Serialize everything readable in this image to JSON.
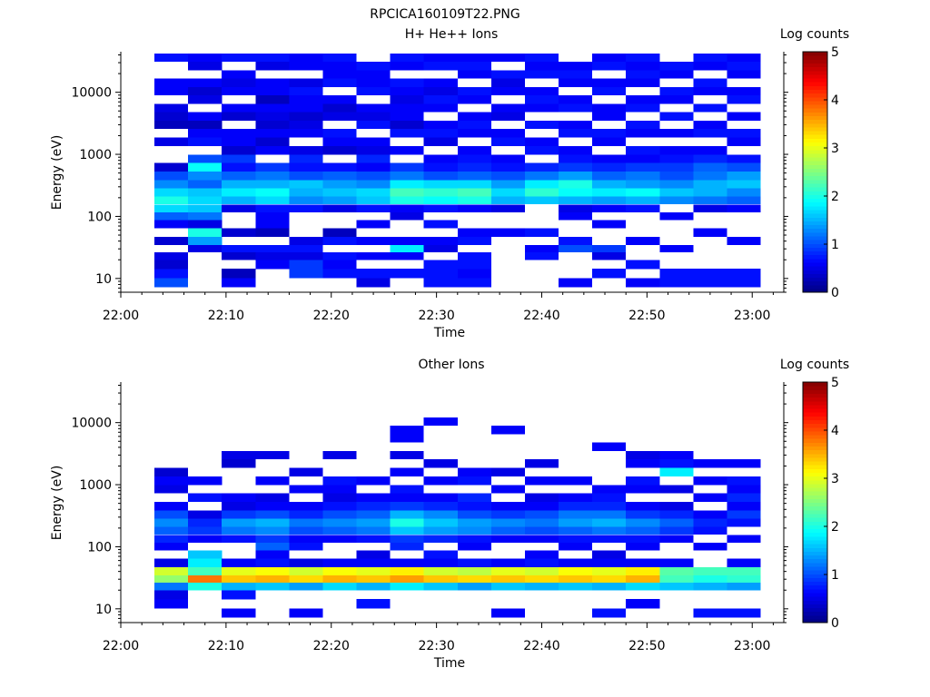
{
  "figure": {
    "filename": "RPCICA160109T22.PNG"
  },
  "colors": {
    "colormap": [
      "#000080",
      "#0000ff",
      "#0080ff",
      "#00ffff",
      "#80ff80",
      "#ffff00",
      "#ff8000",
      "#ff0000",
      "#800000"
    ],
    "axis": "#000000",
    "background": "#ffffff"
  },
  "chart_data": [
    {
      "type": "heatmap",
      "title": "H+ He++ Ions",
      "xlabel": "Time",
      "ylabel": "Energy (eV)",
      "xlim": [
        "22:00",
        "23:03"
      ],
      "ylim": [
        6,
        45000
      ],
      "yscale": "log",
      "x_ticks": [
        "22:00",
        "22:10",
        "22:20",
        "22:30",
        "22:40",
        "22:50",
        "23:00"
      ],
      "y_ticks": [
        "10",
        "100",
        "1000",
        "10000"
      ],
      "colorbar": {
        "label": "Log counts",
        "range": [
          0,
          5
        ],
        "ticks": [
          "0",
          "1",
          "2",
          "3",
          "4",
          "5"
        ]
      },
      "time_bins_start_min": [
        3.2,
        6.4,
        9.6,
        12.8,
        16.0,
        19.2,
        22.4,
        25.6,
        28.8,
        32.0,
        35.2,
        38.4,
        41.6,
        44.8,
        48.0,
        51.2,
        54.4,
        57.6
      ],
      "time_bin_width_min": 3.2,
      "energy_bins_eV": [
        8.5,
        12,
        17,
        23,
        30,
        40,
        55,
        75,
        100,
        135,
        180,
        240,
        330,
        450,
        620,
        850,
        1150,
        1600,
        2200,
        3000,
        4100,
        5600,
        7600,
        10400,
        14200,
        19400,
        26500,
        36000
      ],
      "values_log_counts": [
        [
          1.0,
          0.7,
          0.4,
          0.5,
          0.0,
          0.4,
          0.0,
          0.6,
          1.1,
          1.7,
          2.0,
          1.7,
          1.3,
          1.0,
          0.4,
          0.0,
          0.0,
          0.5,
          0.0,
          0.3,
          0.4,
          0.5,
          0.0,
          0.6,
          0.6,
          0.0,
          0.0,
          0.7
        ],
        [
          0.0,
          0.0,
          0.0,
          0.0,
          0.5,
          1.4,
          2.0,
          0.5,
          1.2,
          1.6,
          1.7,
          1.6,
          1.1,
          1.3,
          1.9,
          1.0,
          0.0,
          0.7,
          0.6,
          0.3,
          0.6,
          0.0,
          0.5,
          0.4,
          0.6,
          0.0,
          0.5,
          0.6
        ],
        [
          0.6,
          0.3,
          0.0,
          0.4,
          0.7,
          0.0,
          0.4,
          0.0,
          0.0,
          0.5,
          1.5,
          1.8,
          1.5,
          1.1,
          0.7,
          0.9,
          0.4,
          0.6,
          0.6,
          0.0,
          0.4,
          0.6,
          0.0,
          0.6,
          0.5,
          0.6,
          0.0,
          0.7
        ],
        [
          0.0,
          0.0,
          0.6,
          0.5,
          0.7,
          0.0,
          0.3,
          0.6,
          0.6,
          0.7,
          1.7,
          1.9,
          1.5,
          1.2,
          0.9,
          0.0,
          0.6,
          0.4,
          0.6,
          0.4,
          0.5,
          0.6,
          0.3,
          0.6,
          0.6,
          0.0,
          0.5,
          0.7
        ],
        [
          0.0,
          0.9,
          0.9,
          0.5,
          0.7,
          0.5,
          0.0,
          0.0,
          0.0,
          0.7,
          1.3,
          1.5,
          1.6,
          1.0,
          0.7,
          0.8,
          0.5,
          0.0,
          0.6,
          0.5,
          0.4,
          0.6,
          0.6,
          0.7,
          0.5,
          0.0,
          0.6,
          0.6
        ],
        [
          0.0,
          0.7,
          0.6,
          0.7,
          0.0,
          0.7,
          0.3,
          0.0,
          0.0,
          0.5,
          1.4,
          1.6,
          1.4,
          1.1,
          0.7,
          0.0,
          0.4,
          0.6,
          0.7,
          0.0,
          0.5,
          0.4,
          0.6,
          0.0,
          0.7,
          0.6,
          0.6,
          0.7
        ],
        [
          0.5,
          0.7,
          0.0,
          0.6,
          0.0,
          0.6,
          0.0,
          0.6,
          0.0,
          0.7,
          1.6,
          1.7,
          1.3,
          1.0,
          0.6,
          0.8,
          0.5,
          0.6,
          0.0,
          0.7,
          0.5,
          0.6,
          0.0,
          0.7,
          0.6,
          0.6,
          0.7,
          0.0
        ],
        [
          0.0,
          0.7,
          0.0,
          0.6,
          1.8,
          0.6,
          0.0,
          0.0,
          0.5,
          0.6,
          2.0,
          2.2,
          1.8,
          1.2,
          0.9,
          0.0,
          0.6,
          0.0,
          0.7,
          0.4,
          0.6,
          0.6,
          0.5,
          0.6,
          0.7,
          0.0,
          0.6,
          0.7
        ],
        [
          0.7,
          0.7,
          0.7,
          0.0,
          0.5,
          0.6,
          0.0,
          0.7,
          0.0,
          0.7,
          1.9,
          2.1,
          1.7,
          1.0,
          0.7,
          0.6,
          0.0,
          0.5,
          0.7,
          0.6,
          0.0,
          0.6,
          0.7,
          0.5,
          0.6,
          0.0,
          0.7,
          0.6
        ],
        [
          0.7,
          0.6,
          0.7,
          0.7,
          0.0,
          0.7,
          0.6,
          0.0,
          0.0,
          0.6,
          2.0,
          2.2,
          1.7,
          1.1,
          0.8,
          0.7,
          0.6,
          0.0,
          0.6,
          0.7,
          0.6,
          0.0,
          0.6,
          0.7,
          0.0,
          0.6,
          0.7,
          0.6
        ],
        [
          0.0,
          0.0,
          0.0,
          0.0,
          0.0,
          0.0,
          0.6,
          0.0,
          0.0,
          0.5,
          1.5,
          1.7,
          1.4,
          1.0,
          0.7,
          0.6,
          0.0,
          0.7,
          0.6,
          0.0,
          0.5,
          0.6,
          0.0,
          0.6,
          0.5,
          0.7,
          0.0,
          0.6
        ],
        [
          0.0,
          0.0,
          0.0,
          0.7,
          0.6,
          0.0,
          0.7,
          0.0,
          0.0,
          0.0,
          1.6,
          2.1,
          1.8,
          1.2,
          0.8,
          0.0,
          0.7,
          0.6,
          0.0,
          0.7,
          0.0,
          0.6,
          0.7,
          0.6,
          0.0,
          0.7,
          0.6,
          0.7
        ],
        [
          0.6,
          0.0,
          0.0,
          0.0,
          1.0,
          0.7,
          0.0,
          0.0,
          0.6,
          0.5,
          1.5,
          1.9,
          2.0,
          1.4,
          0.9,
          0.7,
          0.6,
          0.0,
          0.7,
          0.6,
          0.0,
          0.7,
          0.6,
          0.0,
          0.6,
          0.7,
          0.6,
          0.0
        ],
        [
          0.0,
          0.7,
          0.0,
          0.5,
          0.9,
          0.0,
          0.0,
          0.6,
          0.0,
          0.6,
          1.4,
          1.8,
          1.5,
          1.1,
          0.8,
          0.6,
          0.0,
          0.6,
          0.7,
          0.0,
          0.6,
          0.6,
          0.0,
          0.7,
          0.6,
          0.0,
          0.7,
          0.6
        ],
        [
          0.6,
          0.0,
          0.7,
          0.0,
          0.0,
          0.6,
          0.0,
          0.0,
          0.0,
          0.7,
          1.5,
          1.9,
          1.4,
          1.2,
          0.9,
          0.6,
          0.7,
          0.0,
          0.6,
          0.7,
          0.0,
          0.7,
          0.6,
          0.0,
          0.6,
          0.7,
          0.6,
          0.7
        ],
        [
          0.7,
          0.7,
          0.0,
          0.0,
          0.6,
          0.0,
          0.0,
          0.0,
          0.6,
          0.0,
          1.3,
          1.6,
          1.3,
          1.0,
          0.9,
          0.7,
          0.6,
          0.0,
          0.6,
          0.0,
          0.7,
          0.0,
          0.6,
          0.7,
          0.0,
          0.6,
          0.7,
          0.0
        ],
        [
          0.7,
          0.7,
          0.0,
          0.0,
          0.0,
          0.0,
          0.6,
          0.0,
          0.0,
          0.5,
          1.2,
          1.5,
          1.5,
          1.2,
          1.1,
          0.8,
          0.6,
          0.0,
          0.7,
          0.6,
          0.0,
          0.7,
          0.0,
          0.6,
          0.7,
          0.0,
          0.6,
          0.7
        ],
        [
          0.7,
          0.7,
          0.0,
          0.0,
          0.0,
          0.6,
          0.0,
          0.0,
          0.0,
          0.6,
          1.1,
          1.3,
          1.6,
          1.4,
          1.0,
          0.7,
          0.0,
          0.6,
          0.7,
          0.0,
          0.6,
          0.0,
          0.7,
          0.6,
          0.0,
          0.6,
          0.7,
          0.6
        ]
      ]
    },
    {
      "type": "heatmap",
      "title": "Other Ions",
      "xlabel": "Time",
      "ylabel": "Energy (eV)",
      "xlim": [
        "22:00",
        "23:03"
      ],
      "ylim": [
        6,
        45000
      ],
      "yscale": "log",
      "x_ticks": [
        "22:00",
        "22:10",
        "22:20",
        "22:30",
        "22:40",
        "22:50",
        "23:00"
      ],
      "y_ticks": [
        "10",
        "100",
        "1000",
        "10000"
      ],
      "colorbar": {
        "label": "Log counts",
        "range": [
          0,
          5
        ],
        "ticks": [
          "0",
          "1",
          "2",
          "3",
          "4",
          "5"
        ]
      },
      "time_bins_start_min": [
        3.2,
        6.4,
        9.6,
        12.8,
        16.0,
        19.2,
        22.4,
        25.6,
        28.8,
        32.0,
        35.2,
        38.4,
        41.6,
        44.8,
        48.0,
        51.2,
        54.4,
        57.6
      ],
      "time_bin_width_min": 3.2,
      "energy_bins_eV": [
        8.5,
        12,
        17,
        23,
        30,
        40,
        55,
        75,
        100,
        135,
        180,
        240,
        330,
        450,
        620,
        850,
        1150,
        1600,
        2200,
        3000,
        4100,
        5600,
        7600,
        10400,
        14200,
        19400,
        26500,
        36000
      ],
      "values_log_counts": [
        [
          0.0,
          0.6,
          0.5,
          1.2,
          2.6,
          2.9,
          0.5,
          0.0,
          0.6,
          0.8,
          1.1,
          1.3,
          1.0,
          0.6,
          0.0,
          0.5,
          0.6,
          0.4,
          0.0,
          0.0,
          0.0,
          0.0,
          0.0,
          0.0,
          0.0,
          0.0,
          0.0,
          0.0
        ],
        [
          0.0,
          0.0,
          0.0,
          2.0,
          3.8,
          2.2,
          1.8,
          1.6,
          0.0,
          0.6,
          0.9,
          0.8,
          0.5,
          0.0,
          0.7,
          0.0,
          0.6,
          0.0,
          0.0,
          0.0,
          0.0,
          0.0,
          0.0,
          0.0,
          0.0,
          0.0,
          0.0,
          0.0
        ],
        [
          0.6,
          0.0,
          0.7,
          1.5,
          3.4,
          3.0,
          0.6,
          0.0,
          0.0,
          0.7,
          1.2,
          1.4,
          0.9,
          0.5,
          0.6,
          0.0,
          0.0,
          0.0,
          0.4,
          0.5,
          0.0,
          0.0,
          0.0,
          0.0,
          0.0,
          0.0,
          0.0,
          0.0
        ],
        [
          0.0,
          0.0,
          0.0,
          1.6,
          3.5,
          3.1,
          0.7,
          0.6,
          1.1,
          0.9,
          1.3,
          1.5,
          1.0,
          0.6,
          0.5,
          0.0,
          0.6,
          0.0,
          0.0,
          0.5,
          0.0,
          0.0,
          0.0,
          0.0,
          0.0,
          0.0,
          0.0,
          0.0
        ],
        [
          0.6,
          0.0,
          0.0,
          1.4,
          3.3,
          2.9,
          0.5,
          0.0,
          0.7,
          0.6,
          1.0,
          1.2,
          0.8,
          0.6,
          0.0,
          0.6,
          0.0,
          0.5,
          0.0,
          0.0,
          0.0,
          0.0,
          0.0,
          0.0,
          0.0,
          0.0,
          0.0,
          0.0
        ],
        [
          0.0,
          0.0,
          0.0,
          1.7,
          3.5,
          3.1,
          0.6,
          0.0,
          0.0,
          0.6,
          1.1,
          1.3,
          1.0,
          0.7,
          0.5,
          0.6,
          0.7,
          0.0,
          0.0,
          0.5,
          0.0,
          0.0,
          0.0,
          0.0,
          0.0,
          0.0,
          0.0,
          0.0
        ],
        [
          0.0,
          0.7,
          0.0,
          1.5,
          3.4,
          3.0,
          0.6,
          0.5,
          0.0,
          0.7,
          1.2,
          1.4,
          1.1,
          0.8,
          0.6,
          0.0,
          0.6,
          0.0,
          0.0,
          0.0,
          0.0,
          0.0,
          0.0,
          0.0,
          0.0,
          0.0,
          0.0,
          0.0
        ],
        [
          0.0,
          0.0,
          0.0,
          1.8,
          3.6,
          3.2,
          0.6,
          0.0,
          0.8,
          0.9,
          1.6,
          2.0,
          1.5,
          0.9,
          0.6,
          0.7,
          0.0,
          0.6,
          0.0,
          0.5,
          0.0,
          0.6,
          0.6,
          0.0,
          0.0,
          0.0,
          0.0,
          0.0
        ],
        [
          0.0,
          0.0,
          0.0,
          1.6,
          3.4,
          2.9,
          0.6,
          0.7,
          0.0,
          0.8,
          1.4,
          1.6,
          1.3,
          0.8,
          0.6,
          0.0,
          0.6,
          0.0,
          0.5,
          0.0,
          0.0,
          0.0,
          0.0,
          0.6,
          0.0,
          0.0,
          0.0,
          0.0
        ],
        [
          0.0,
          0.0,
          0.0,
          1.4,
          3.3,
          2.8,
          0.7,
          0.0,
          0.6,
          0.7,
          1.3,
          1.4,
          1.0,
          0.7,
          0.8,
          0.0,
          0.7,
          0.6,
          0.0,
          0.0,
          0.0,
          0.0,
          0.0,
          0.0,
          0.0,
          0.0,
          0.0,
          0.0
        ],
        [
          0.6,
          0.0,
          0.0,
          1.6,
          3.4,
          3.0,
          0.6,
          0.0,
          0.0,
          0.6,
          1.1,
          1.3,
          0.9,
          0.6,
          0.0,
          0.6,
          0.0,
          0.5,
          0.0,
          0.0,
          0.0,
          0.0,
          0.6,
          0.0,
          0.0,
          0.0,
          0.0,
          0.0
        ],
        [
          0.0,
          0.0,
          0.0,
          1.5,
          3.3,
          2.9,
          0.7,
          0.6,
          0.0,
          0.6,
          1.0,
          1.2,
          1.0,
          0.6,
          0.5,
          0.0,
          0.6,
          0.0,
          0.5,
          0.0,
          0.0,
          0.0,
          0.0,
          0.0,
          0.0,
          0.0,
          0.0,
          0.0
        ],
        [
          0.0,
          0.0,
          0.0,
          1.6,
          3.4,
          3.1,
          0.6,
          0.0,
          0.6,
          0.7,
          1.1,
          1.4,
          1.2,
          0.8,
          0.6,
          0.0,
          0.6,
          0.0,
          0.0,
          0.0,
          0.0,
          0.0,
          0.0,
          0.0,
          0.0,
          0.0,
          0.0,
          0.0
        ],
        [
          0.7,
          0.0,
          0.0,
          1.5,
          3.3,
          3.0,
          0.6,
          0.5,
          0.0,
          0.7,
          1.2,
          1.5,
          1.2,
          0.8,
          0.7,
          0.6,
          0.0,
          0.0,
          0.0,
          0.0,
          0.6,
          0.0,
          0.0,
          0.0,
          0.0,
          0.0,
          0.0,
          0.0
        ],
        [
          0.0,
          0.6,
          0.0,
          1.7,
          3.5,
          3.2,
          0.6,
          0.0,
          0.6,
          0.7,
          1.1,
          1.3,
          0.9,
          0.6,
          0.0,
          0.6,
          0.7,
          0.0,
          0.6,
          0.5,
          0.0,
          0.0,
          0.0,
          0.0,
          0.0,
          0.0,
          0.0,
          0.0
        ],
        [
          0.0,
          0.0,
          0.0,
          1.6,
          2.2,
          2.3,
          0.6,
          0.0,
          0.0,
          0.6,
          0.9,
          1.1,
          0.8,
          0.5,
          0.0,
          0.5,
          0.0,
          1.8,
          0.7,
          0.6,
          0.0,
          0.0,
          0.0,
          0.0,
          0.0,
          0.0,
          0.0,
          0.0
        ],
        [
          0.7,
          0.0,
          0.0,
          1.5,
          2.0,
          2.2,
          0.0,
          0.0,
          0.6,
          0.0,
          0.7,
          0.8,
          0.6,
          0.0,
          0.6,
          0.0,
          0.6,
          0.0,
          0.6,
          0.0,
          0.0,
          0.0,
          0.0,
          0.0,
          0.0,
          0.0,
          0.0,
          0.0
        ],
        [
          0.7,
          0.0,
          0.0,
          1.4,
          2.1,
          2.2,
          0.6,
          0.0,
          0.0,
          0.6,
          0.0,
          0.7,
          0.9,
          0.6,
          0.8,
          0.6,
          0.7,
          0.0,
          0.6,
          0.0,
          0.0,
          0.0,
          0.0,
          0.0,
          0.0,
          0.0,
          0.0,
          0.0
        ]
      ]
    }
  ]
}
